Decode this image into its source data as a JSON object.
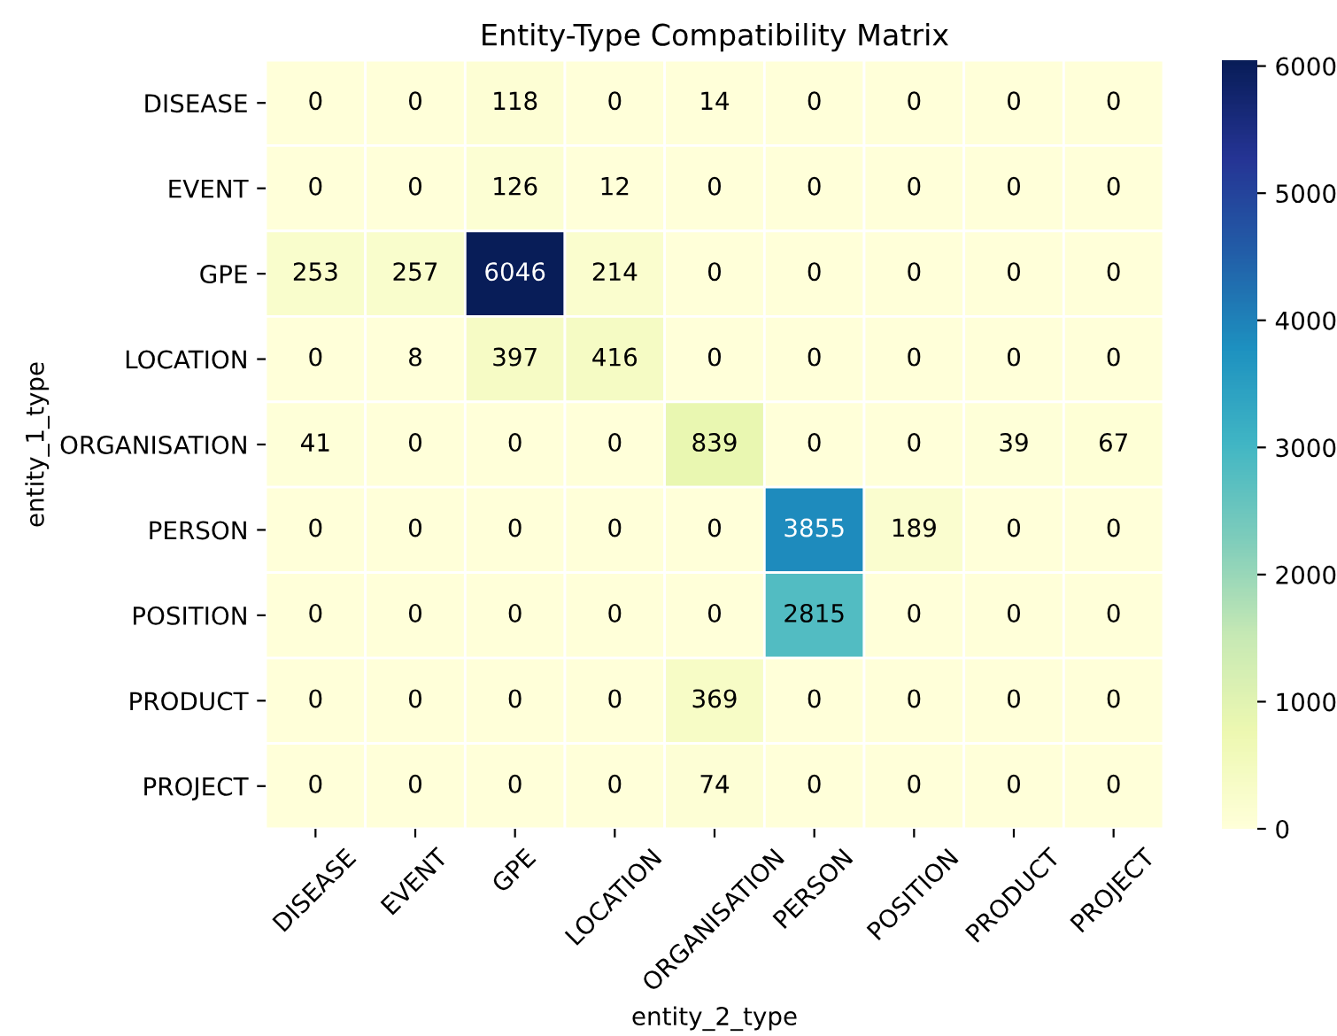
{
  "chart_data": {
    "type": "heatmap",
    "title": "Entity-Type Compatibility Matrix",
    "xlabel": "entity_2_type",
    "ylabel": "entity_1_type",
    "categories": [
      "DISEASE",
      "EVENT",
      "GPE",
      "LOCATION",
      "ORGANISATION",
      "PERSON",
      "POSITION",
      "PRODUCT",
      "PROJECT"
    ],
    "y_categories": [
      "DISEASE",
      "EVENT",
      "GPE",
      "LOCATION",
      "ORGANISATION",
      "PERSON",
      "POSITION",
      "PRODUCT",
      "PROJECT"
    ],
    "cells": [
      [
        0,
        0,
        118,
        0,
        14,
        0,
        0,
        0,
        0
      ],
      [
        0,
        0,
        126,
        12,
        0,
        0,
        0,
        0,
        0
      ],
      [
        253,
        257,
        6046,
        214,
        0,
        0,
        0,
        0,
        0
      ],
      [
        0,
        8,
        397,
        416,
        0,
        0,
        0,
        0,
        0
      ],
      [
        41,
        0,
        0,
        0,
        839,
        0,
        0,
        39,
        67
      ],
      [
        0,
        0,
        0,
        0,
        0,
        3855,
        189,
        0,
        0
      ],
      [
        0,
        0,
        0,
        0,
        0,
        2815,
        0,
        0,
        0
      ],
      [
        0,
        0,
        0,
        0,
        369,
        0,
        0,
        0,
        0
      ],
      [
        0,
        0,
        0,
        0,
        74,
        0,
        0,
        0,
        0
      ]
    ],
    "clim": [
      0,
      6046
    ],
    "cticks": [
      0,
      1000,
      2000,
      3000,
      4000,
      5000,
      6000
    ],
    "data_labels": true
  }
}
